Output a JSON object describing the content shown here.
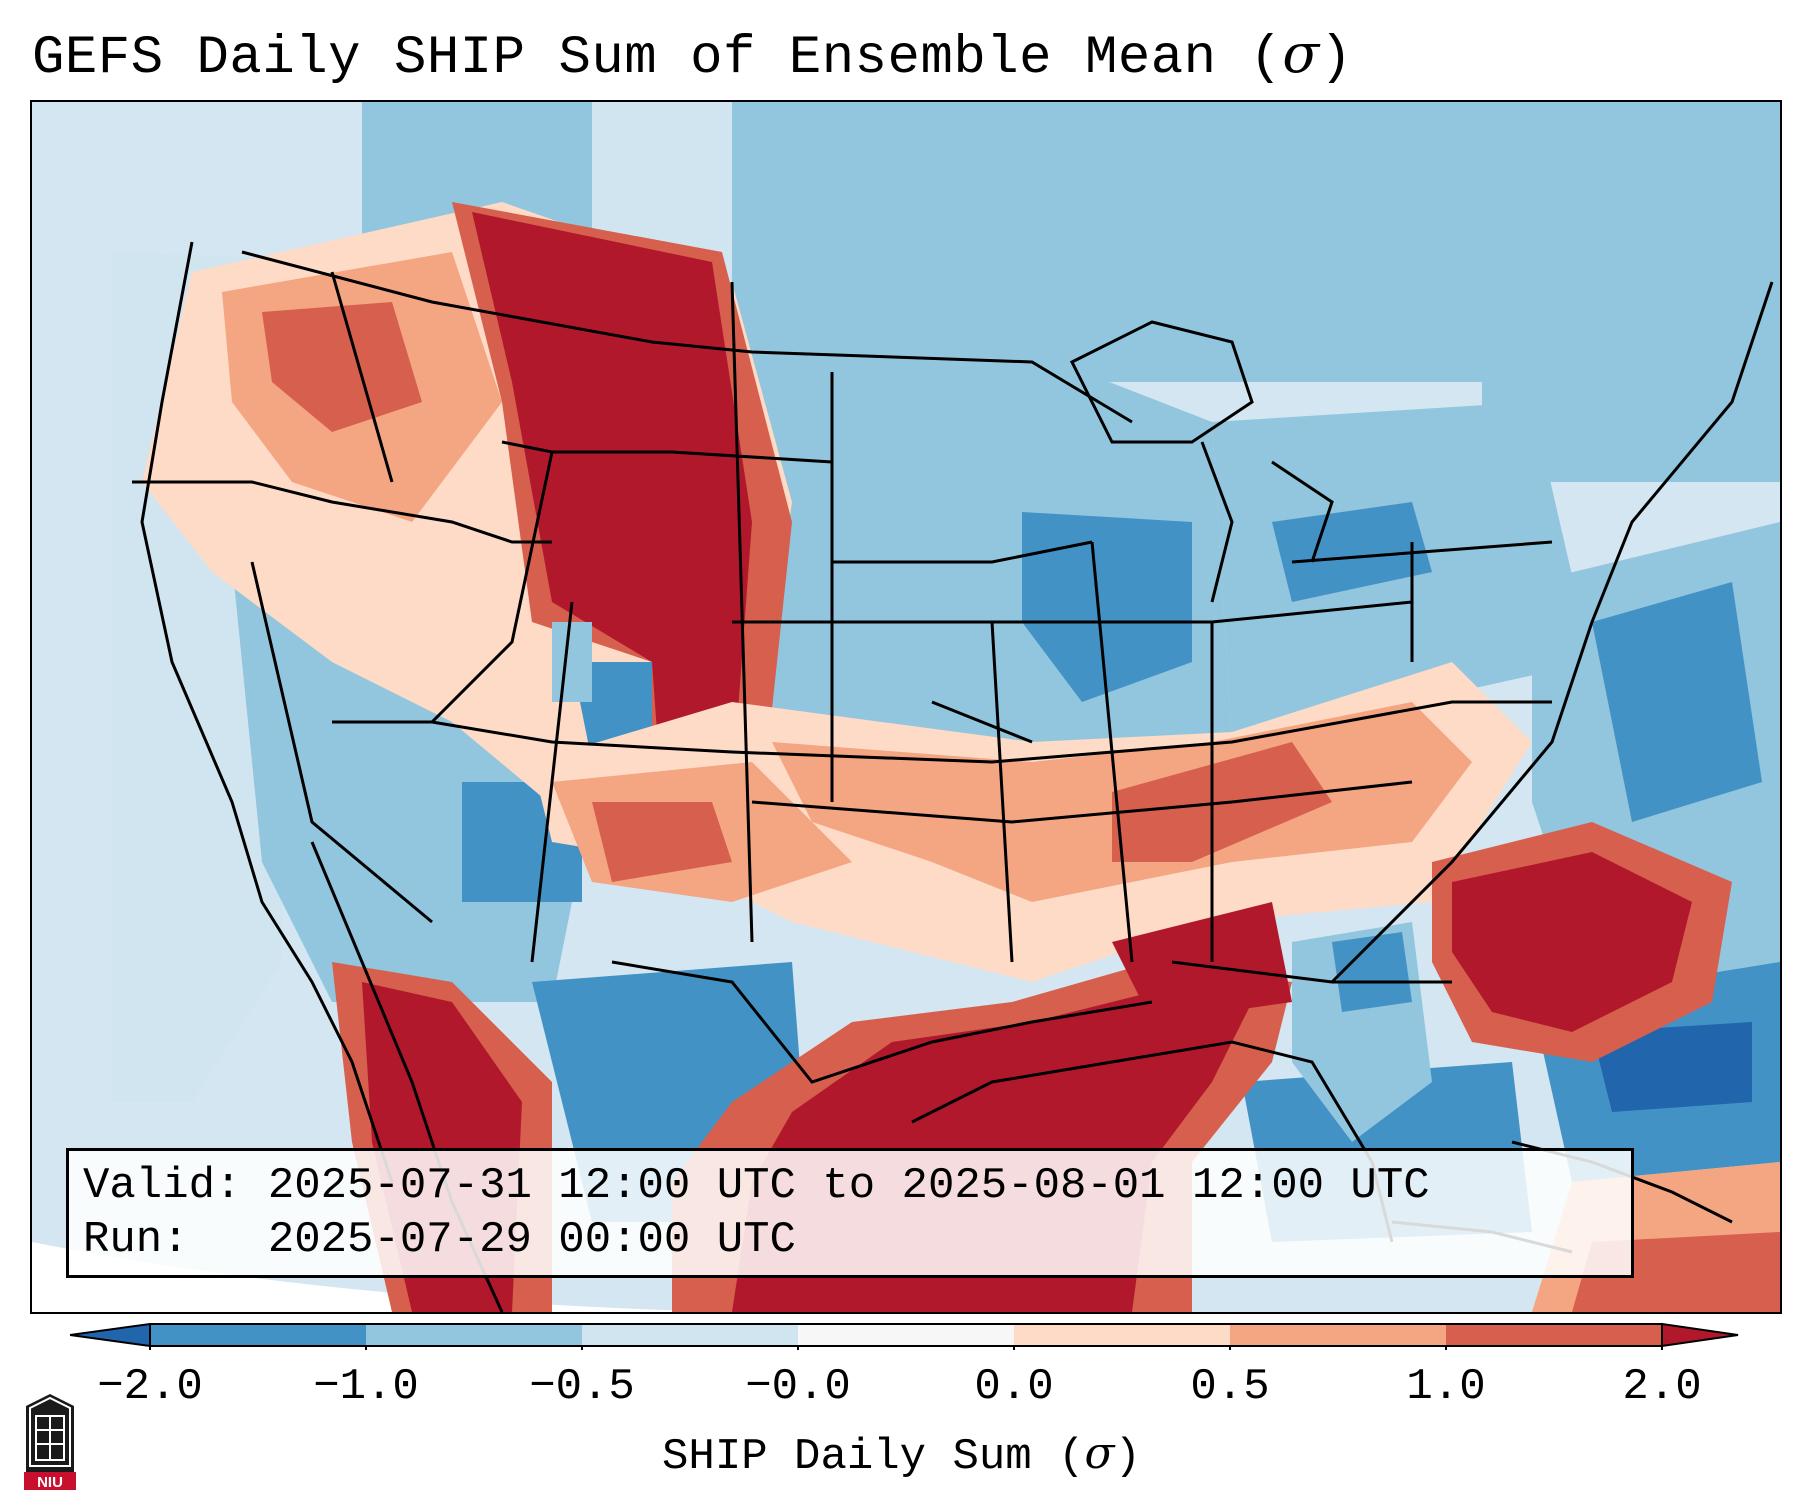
{
  "title": {
    "text": "GEFS Daily SHIP Sum of Ensemble Mean (",
    "symbol": "σ",
    "close": ")"
  },
  "info": {
    "valid_label": "Valid:",
    "valid_value": "2025-07-31 12:00 UTC to 2025-08-01 12:00 UTC",
    "run_label": "Run:",
    "run_value": "2025-07-29 00:00 UTC"
  },
  "colorbar": {
    "label_text": "SHIP Daily Sum (",
    "label_symbol": "σ",
    "label_close": ")",
    "ticks": [
      "−2.0",
      "−1.0",
      "−0.5",
      "−0.0",
      "0.0",
      "0.5",
      "1.0",
      "2.0"
    ],
    "colors": [
      "#4292c6",
      "#92c5de",
      "#d1e5f0",
      "#f7f7f7",
      "#fddbc7",
      "#f4a582",
      "#d6604d",
      "#b2182b"
    ],
    "under_color": "#2166ac",
    "over_color": "#b2182b"
  },
  "logo": {
    "text": "NIU",
    "colors": {
      "dark": "#1a1a1a",
      "red": "#c8102e"
    }
  },
  "map": {
    "ocean_color": "#d3e6f1",
    "outside_color": "#ffffff",
    "border_color": "#000000"
  }
}
